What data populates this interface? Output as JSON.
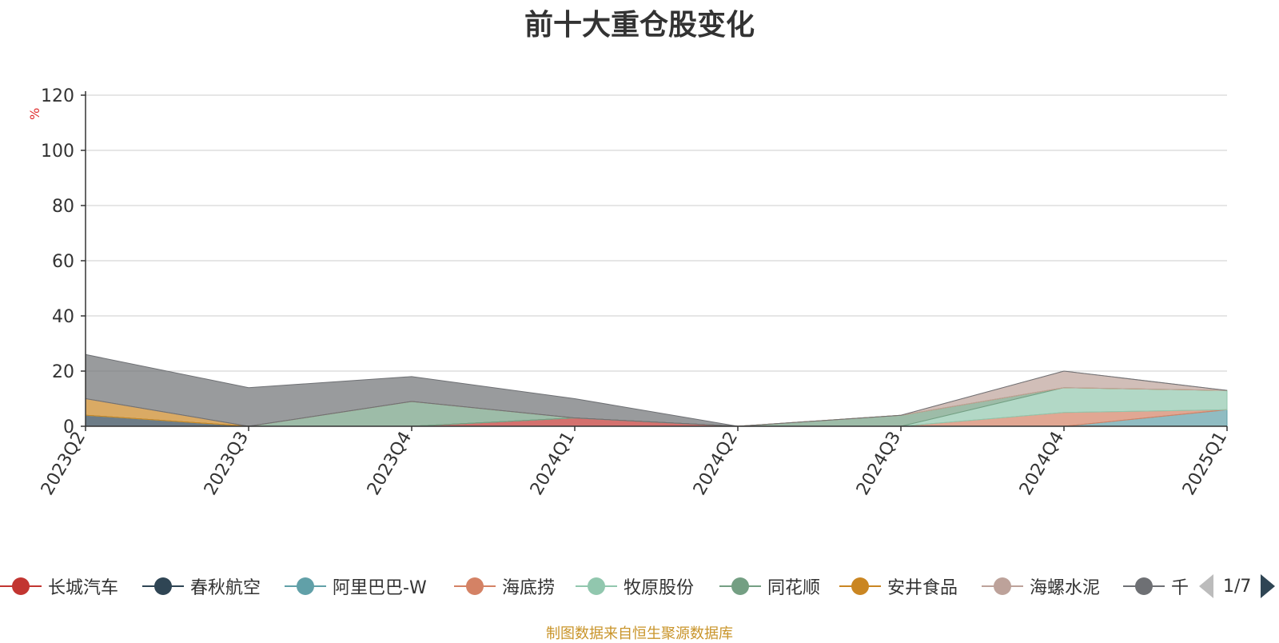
{
  "chart_data": {
    "type": "area",
    "title": "前十大重仓股变化",
    "ylabel": "%",
    "ylim": [
      0,
      120
    ],
    "yticks": [
      0,
      20,
      40,
      60,
      80,
      100,
      120
    ],
    "grid": true,
    "legend_position": "bottom",
    "categories": [
      "2023Q2",
      "2023Q3",
      "2023Q4",
      "2024Q1",
      "2024Q2",
      "2024Q3",
      "2024Q4",
      "2025Q1"
    ],
    "series": [
      {
        "name": "长城汽车",
        "color": "#c23531",
        "values": [
          0,
          0,
          0,
          3,
          0,
          0,
          0,
          0
        ]
      },
      {
        "name": "春秋航空",
        "color": "#2f4554",
        "values": [
          4,
          0,
          0,
          0,
          0,
          0,
          0,
          0
        ]
      },
      {
        "name": "阿里巴巴-W",
        "color": "#61a0a8",
        "values": [
          0,
          0,
          0,
          0,
          0,
          0,
          0,
          6
        ]
      },
      {
        "name": "海底捞",
        "color": "#d48265",
        "values": [
          0,
          0,
          0,
          0,
          0,
          0,
          5,
          0
        ]
      },
      {
        "name": "牧原股份",
        "color": "#91c7ae",
        "values": [
          0,
          0,
          0,
          0,
          0,
          0,
          9,
          7
        ]
      },
      {
        "name": "同花顺",
        "color": "#749f83",
        "values": [
          0,
          0,
          9,
          0,
          0,
          4,
          0,
          0
        ]
      },
      {
        "name": "安井食品",
        "color": "#ca8622",
        "values": [
          6,
          0,
          0,
          0,
          0,
          0,
          0,
          0
        ]
      },
      {
        "name": "海螺水泥",
        "color": "#bda29a",
        "values": [
          0,
          0,
          0,
          0,
          0,
          0,
          6,
          0
        ]
      },
      {
        "name": "千",
        "color": "#6e7074",
        "values": [
          16,
          14,
          9,
          7,
          0,
          0,
          0,
          0
        ]
      }
    ]
  },
  "legend": {
    "items": [
      {
        "label": "长城汽车",
        "color": "#c23531"
      },
      {
        "label": "春秋航空",
        "color": "#2f4554"
      },
      {
        "label": "阿里巴巴-W",
        "color": "#61a0a8"
      },
      {
        "label": "海底捞",
        "color": "#d48265"
      },
      {
        "label": "牧原股份",
        "color": "#91c7ae"
      },
      {
        "label": "同花顺",
        "color": "#749f83"
      },
      {
        "label": "安井食品",
        "color": "#ca8622"
      },
      {
        "label": "海螺水泥",
        "color": "#bda29a"
      },
      {
        "label": "千",
        "color": "#6e7074"
      }
    ],
    "page": "1/7"
  },
  "source": "制图数据来自恒生聚源数据库"
}
